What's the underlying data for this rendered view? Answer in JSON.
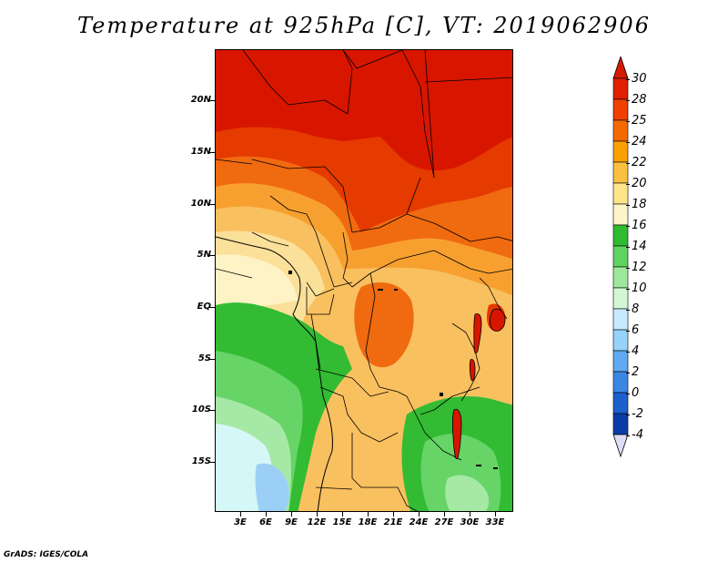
{
  "title": "Temperature at 925hPa [C], VT: 2019062906",
  "footer": "GrADS: IGES/COLA",
  "lat_labels": [
    "20N",
    "15N",
    "10N",
    "5N",
    "EQ",
    "5S",
    "10S",
    "15S"
  ],
  "lon_labels": [
    "3E",
    "6E",
    "9E",
    "12E",
    "15E",
    "18E",
    "21E",
    "24E",
    "27E",
    "30E",
    "33E"
  ],
  "colorbar": {
    "labels": [
      "30",
      "28",
      "25",
      "24",
      "22",
      "20",
      "18",
      "16",
      "14",
      "12",
      "10",
      "8",
      "6",
      "4",
      "2",
      "0",
      "-2",
      "-4"
    ],
    "colors": [
      "#e01e00",
      "#ef4000",
      "#f56a00",
      "#faa000",
      "#fbc040",
      "#fde58a",
      "#fdf5c8",
      "#2fbb2f",
      "#5fd35f",
      "#9ee89e",
      "#d2f7d2",
      "#c8eafe",
      "#96d2fa",
      "#5faaf0",
      "#3a86e3",
      "#1e5fce",
      "#0a3ca6",
      "#081a70",
      "#dcdcf7"
    ],
    "top_arrow_color": "#d81a00",
    "bottom_arrow_color": "#dcdcf7"
  },
  "map_colors": {
    "c30": "#d81600",
    "c28": "#e53a00",
    "c25": "#f06a10",
    "c24": "#f7a030",
    "c22": "#f9c060",
    "c20": "#fbe09a",
    "c18": "#fdf3c4",
    "c16": "#33bb33",
    "c14": "#66d466",
    "c12": "#a6e9a6",
    "c10": "#d6f7f7",
    "c8": "#9ccff5"
  }
}
